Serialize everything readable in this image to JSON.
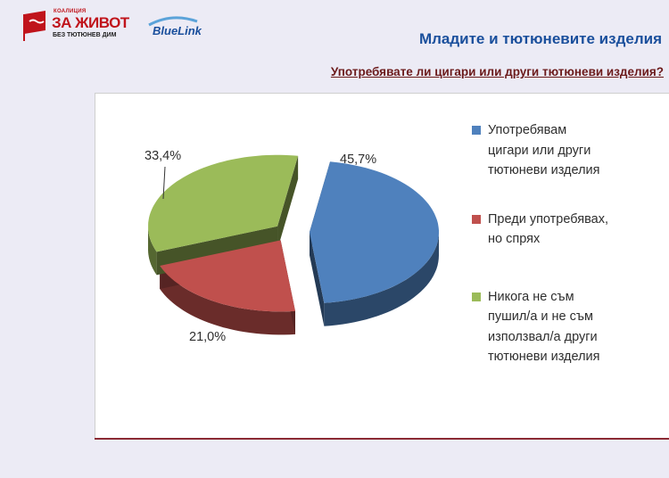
{
  "header": {
    "logo_koalicia_small": "КОАЛИЦИЯ",
    "logo_koalicia_main": "ЗА ЖИВОТ",
    "logo_koalicia_sub": "БЕЗ ТЮТЮНЕВ ДИМ",
    "logo_bluelink": "BlueLink",
    "title": "Младите и тютюневите изделия",
    "question": "Употребявате ли цигари или други тютюневи изделия?"
  },
  "chart_data": {
    "type": "pie",
    "title": "",
    "categories": [
      "Употребявам цигари или други тютюневи изделия",
      "Преди употребявах, но спрях",
      "Никога не съм пушил/а и не съм използвал/а други тютюневи изделия"
    ],
    "values": [
      45.7,
      21.0,
      33.4
    ],
    "data_labels": [
      "45,7%",
      "21,0%",
      "33,4%"
    ],
    "colors": [
      "#4f81bd",
      "#c0504d",
      "#9bbb59"
    ],
    "legend_position": "right",
    "legend_lines": [
      [
        "Употребявам",
        "цигари или други",
        "тютюневи изделия"
      ],
      [
        "Преди употребявах,",
        "но спрях"
      ],
      [
        "Никога не съм",
        "пушил/а и не съм",
        "използвал/а други",
        "тютюневи изделия"
      ]
    ]
  }
}
